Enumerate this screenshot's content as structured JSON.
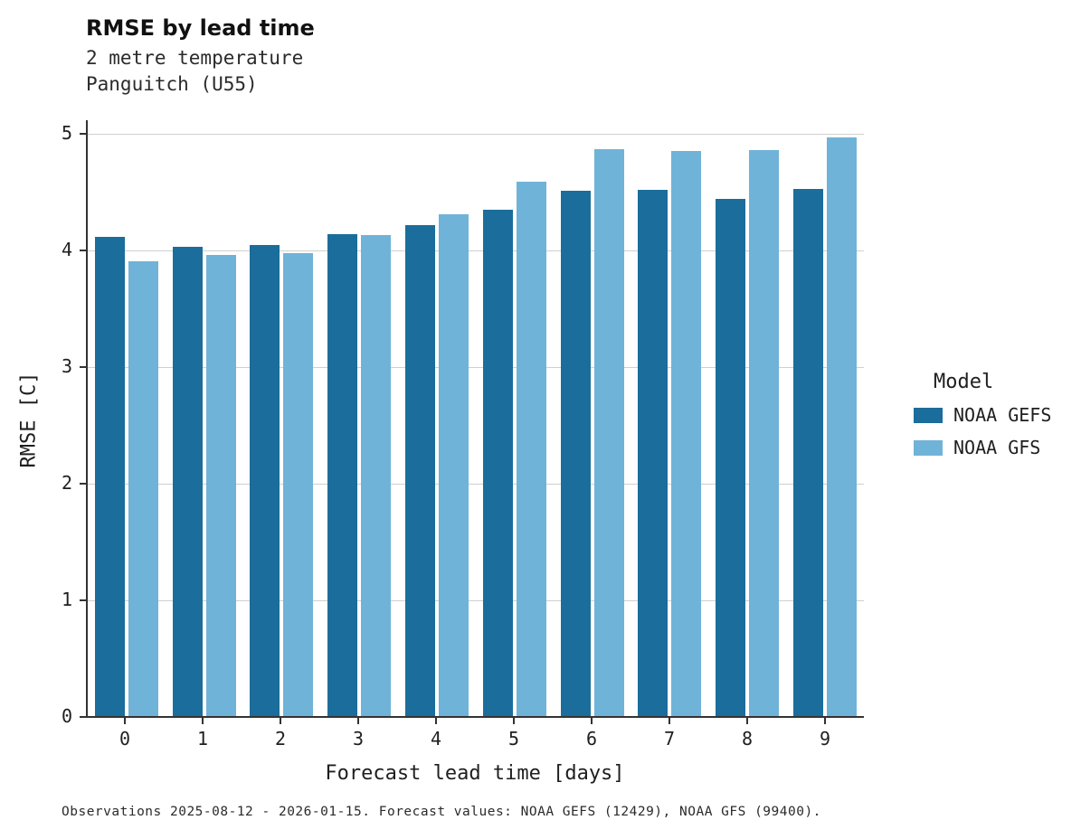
{
  "title": "RMSE by lead time",
  "subtitle_variable": "2 metre temperature",
  "subtitle_station": "Panguitch (U55)",
  "footer": "Observations 2025-08-12 - 2026-01-15. Forecast values: NOAA GEFS (12429), NOAA GFS (99400).",
  "legend": {
    "title": "Model",
    "entries": [
      {
        "label": "NOAA GEFS",
        "color": "#1b6d9b"
      },
      {
        "label": "NOAA GFS",
        "color": "#70b3d8"
      }
    ]
  },
  "chart_data": {
    "type": "bar",
    "title": "RMSE by lead time",
    "subtitle": "2 metre temperature, Panguitch (U55)",
    "xlabel": "Forecast lead time [days]",
    "ylabel": "RMSE [C]",
    "categories": [
      "0",
      "1",
      "2",
      "3",
      "4",
      "5",
      "6",
      "7",
      "8",
      "9"
    ],
    "series": [
      {
        "name": "NOAA GEFS",
        "color": "#1b6d9b",
        "values": [
          4.12,
          4.03,
          4.05,
          4.14,
          4.22,
          4.35,
          4.51,
          4.52,
          4.44,
          4.53
        ]
      },
      {
        "name": "NOAA GFS",
        "color": "#70b3d8",
        "values": [
          3.91,
          3.96,
          3.98,
          4.13,
          4.31,
          4.59,
          4.87,
          4.85,
          4.86,
          4.97
        ]
      }
    ],
    "ylim": [
      0,
      5
    ],
    "yticks": [
      0,
      1,
      2,
      3,
      4,
      5
    ],
    "grid": true,
    "legend_position": "right"
  }
}
